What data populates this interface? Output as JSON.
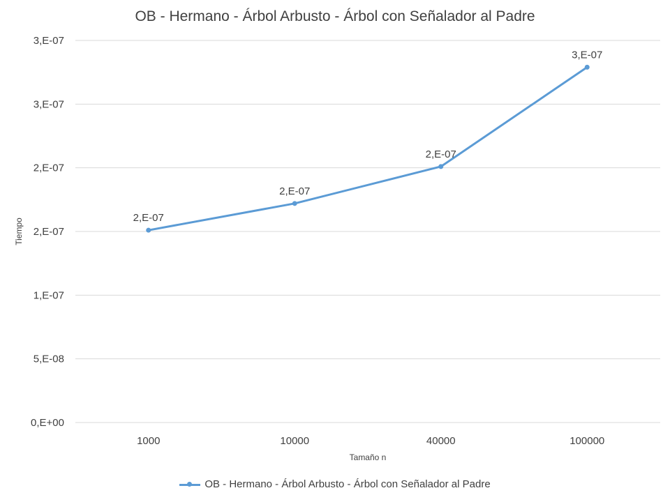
{
  "chart_data": {
    "type": "line",
    "title": "OB - Hermano - Árbol Arbusto - Árbol con Señalador al Padre",
    "xlabel": "Tamaño n",
    "ylabel": "Tiempo",
    "categories": [
      "1000",
      "10000",
      "40000",
      "100000"
    ],
    "series": [
      {
        "name": "OB - Hermano - Árbol Arbusto - Árbol con Señalador al Padre",
        "values": [
          1.51e-07,
          1.72e-07,
          2.01e-07,
          2.79e-07
        ],
        "data_labels": [
          "2,E-07",
          "2,E-07",
          "2,E-07",
          "3,E-07"
        ],
        "color": "#5b9bd5"
      }
    ],
    "yticks": [
      0,
      5e-08,
      1e-07,
      1.5e-07,
      2e-07,
      2.5e-07,
      3e-07
    ],
    "ytick_labels": [
      "0,E+00",
      "5,E-08",
      "1,E-07",
      "2,E-07",
      "2,E-07",
      "3,E-07",
      "3,E-07"
    ],
    "ylim": [
      0,
      3e-07
    ],
    "grid": true,
    "legend_position": "bottom"
  }
}
